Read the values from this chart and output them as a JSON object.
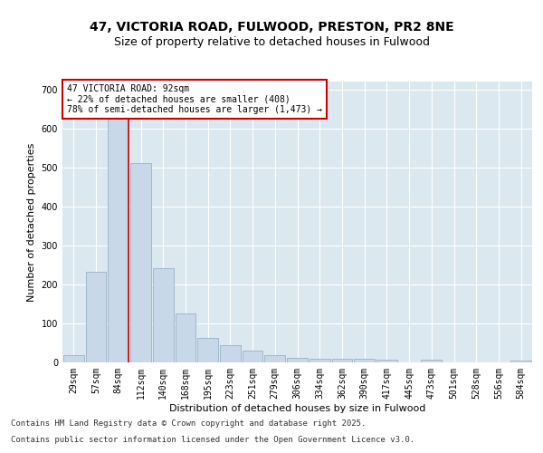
{
  "title1": "47, VICTORIA ROAD, FULWOOD, PRESTON, PR2 8NE",
  "title2": "Size of property relative to detached houses in Fulwood",
  "xlabel": "Distribution of detached houses by size in Fulwood",
  "ylabel": "Number of detached properties",
  "categories": [
    "29sqm",
    "57sqm",
    "84sqm",
    "112sqm",
    "140sqm",
    "168sqm",
    "195sqm",
    "223sqm",
    "251sqm",
    "279sqm",
    "306sqm",
    "334sqm",
    "362sqm",
    "390sqm",
    "417sqm",
    "445sqm",
    "473sqm",
    "501sqm",
    "528sqm",
    "556sqm",
    "584sqm"
  ],
  "values": [
    18,
    232,
    650,
    510,
    242,
    125,
    62,
    45,
    30,
    18,
    12,
    10,
    10,
    10,
    8,
    0,
    6,
    0,
    0,
    0,
    5
  ],
  "bar_color": "#c8d8e8",
  "bar_edge_color": "#a0b8cc",
  "property_line_bin": 2,
  "annotation_text": "47 VICTORIA ROAD: 92sqm\n← 22% of detached houses are smaller (408)\n78% of semi-detached houses are larger (1,473) →",
  "annotation_box_color": "#ffffff",
  "annotation_box_edge_color": "#cc0000",
  "property_line_color": "#cc0000",
  "ylim": [
    0,
    720
  ],
  "yticks": [
    0,
    100,
    200,
    300,
    400,
    500,
    600,
    700
  ],
  "fig_bg_color": "#ffffff",
  "plot_bg_color": "#dce8f0",
  "grid_color": "#ffffff",
  "footer1": "Contains HM Land Registry data © Crown copyright and database right 2025.",
  "footer2": "Contains public sector information licensed under the Open Government Licence v3.0.",
  "title_fontsize": 10,
  "subtitle_fontsize": 9,
  "axis_label_fontsize": 8,
  "tick_fontsize": 7,
  "annotation_fontsize": 7,
  "footer_fontsize": 6.5
}
